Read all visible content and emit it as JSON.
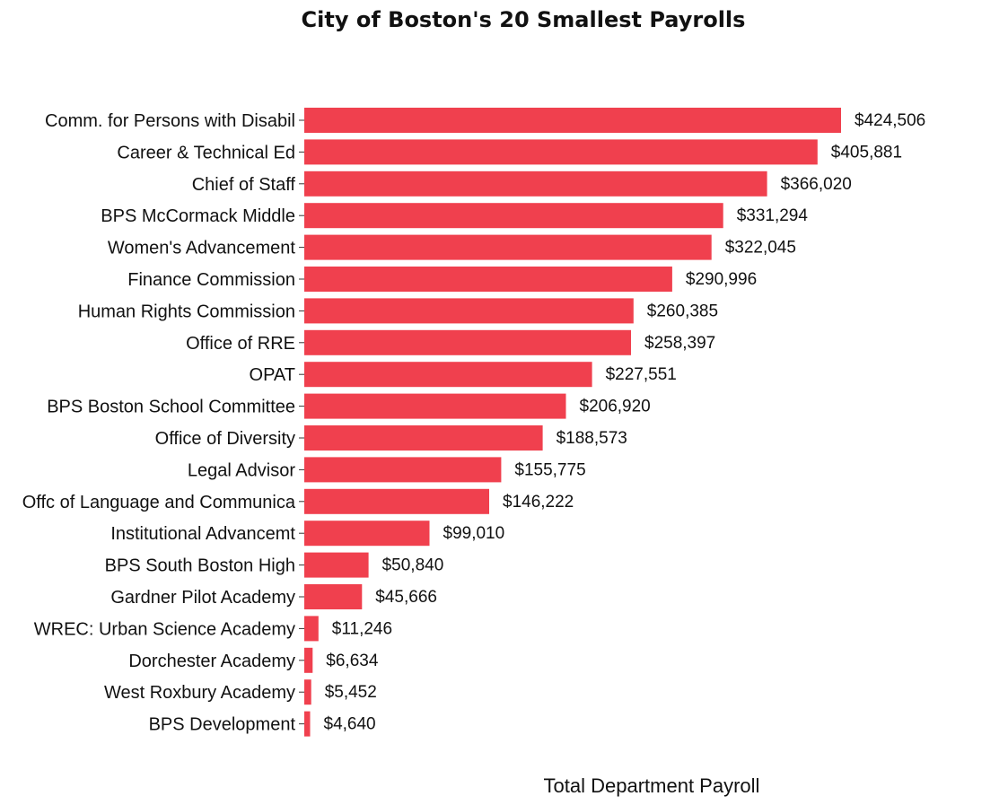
{
  "chart_data": {
    "type": "bar",
    "orientation": "horizontal",
    "title": "City of Boston's 20 Smallest Payrolls",
    "xlabel": "Total Department Payroll",
    "ylabel": "",
    "bar_color": "#f0404e",
    "grid": false,
    "legend": "none",
    "xlim": [
      0,
      440000
    ],
    "categories": [
      "Comm. for Persons with Disabil",
      "Career & Technical Ed",
      "Chief of Staff",
      "BPS McCormack Middle",
      "Women's Advancement",
      "Finance Commission",
      "Human Rights Commission",
      "Office of RRE",
      "OPAT",
      "BPS Boston School Committee",
      "Office of Diversity",
      "Legal Advisor",
      "Offc of Language and Communica",
      "Institutional Advancemt",
      "BPS South Boston High",
      "Gardner Pilot  Academy",
      "WREC: Urban Science Academy",
      "Dorchester Academy",
      "West Roxbury Academy",
      "BPS Development"
    ],
    "values": [
      424506,
      405881,
      366020,
      331294,
      322045,
      290996,
      260385,
      258397,
      227551,
      206920,
      188573,
      155775,
      146222,
      99010,
      50840,
      45666,
      11246,
      6634,
      5452,
      4640
    ],
    "value_labels": [
      "$424,506",
      "$405,881",
      "$366,020",
      "$331,294",
      "$322,045",
      "$290,996",
      "$260,385",
      "$258,397",
      "$227,551",
      "$206,920",
      "$188,573",
      "$155,775",
      "$146,222",
      "$99,010",
      "$50,840",
      "$45,666",
      "$11,246",
      "$6,634",
      "$5,452",
      "$4,640"
    ]
  }
}
